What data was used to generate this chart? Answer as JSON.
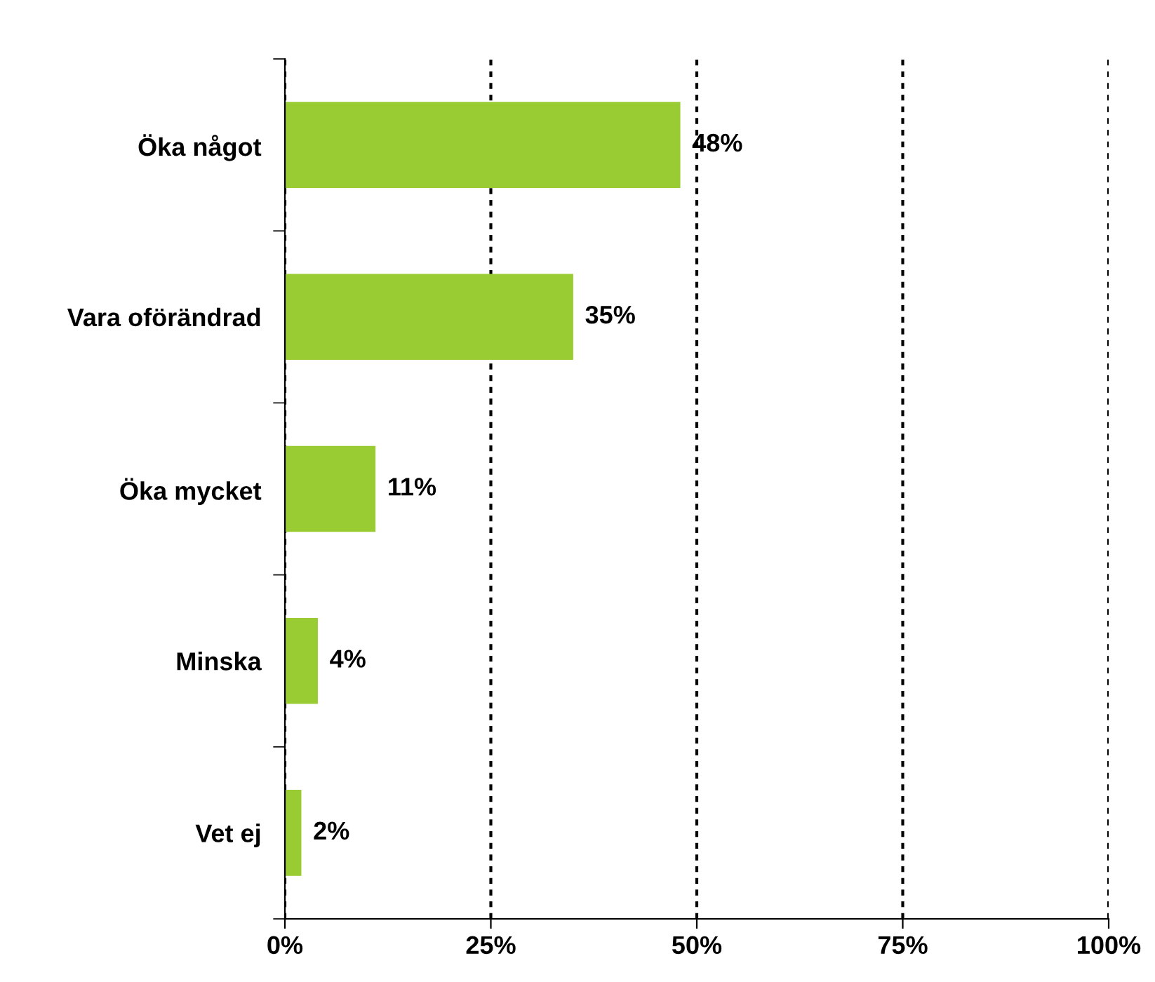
{
  "chart_data": {
    "type": "bar",
    "orientation": "horizontal",
    "categories": [
      "Öka något",
      "Vara oförändrad",
      "Öka mycket",
      "Minska",
      "Vet ej"
    ],
    "values": [
      48,
      35,
      11,
      4,
      2
    ],
    "value_labels": [
      "48%",
      "35%",
      "11%",
      "4%",
      "2%"
    ],
    "color": "#99cc33",
    "xlim": [
      0,
      100
    ],
    "xticks": [
      {
        "value": 0,
        "label": "0%"
      },
      {
        "value": 25,
        "label": "25%"
      },
      {
        "value": 50,
        "label": "50%"
      },
      {
        "value": 75,
        "label": "75%"
      },
      {
        "value": 100,
        "label": "100%"
      }
    ],
    "grid": "x",
    "legend": false
  }
}
